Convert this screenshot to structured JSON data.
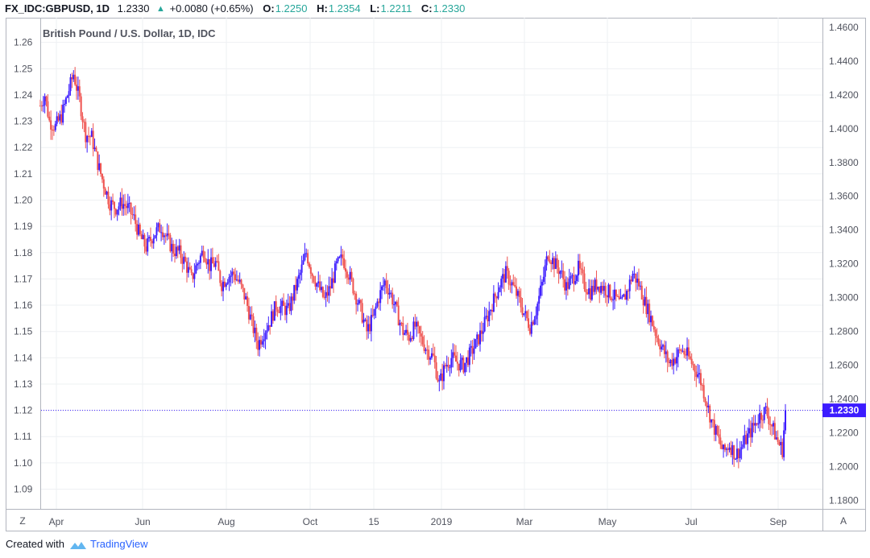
{
  "header": {
    "symbol": "FX_IDC:GBPUSD, 1D",
    "price": "1.2330",
    "change": "+0.0080 (+0.65%)",
    "open_label": "O:",
    "open": "1.2250",
    "high_label": "H:",
    "high": "1.2354",
    "low_label": "L:",
    "low": "1.2211",
    "close_label": "C:",
    "close": "1.2330",
    "up_arrow": "▲"
  },
  "footer": {
    "created_with": "Created with",
    "brand": "TradingView"
  },
  "chart_data": {
    "type": "candlestick",
    "title": "British Pound / U.S. Dollar, 1D, IDC",
    "x_tick_labels": [
      "Apr",
      "Jun",
      "Aug",
      "Oct",
      "15",
      "2019",
      "Mar",
      "May",
      "Jul",
      "Sep"
    ],
    "left_axis": {
      "ticks": [
        "1.26",
        "1.25",
        "1.24",
        "1.23",
        "1.22",
        "1.21",
        "1.20",
        "1.19",
        "1.18",
        "1.17",
        "1.16",
        "1.15",
        "1.14",
        "1.13",
        "1.12",
        "1.11",
        "1.10",
        "1.09"
      ],
      "range": [
        1.0825,
        1.2694
      ]
    },
    "right_axis": {
      "ticks": [
        "1.4600",
        "1.4400",
        "1.4200",
        "1.4000",
        "1.3800",
        "1.3600",
        "1.3400",
        "1.3200",
        "1.3000",
        "1.2800",
        "1.2600",
        "1.2400",
        "1.2200",
        "1.2000",
        "1.1800"
      ],
      "range": [
        1.1749,
        1.4657
      ]
    },
    "last_price_label": "1.2330",
    "last_price_left_scale": 1.12,
    "grid": true,
    "scale_button_left": "Z",
    "scale_button_right": "A",
    "up_color": "#3c1cff",
    "down_color": "#ef5350",
    "path_points": [
      [
        0,
        1.236
      ],
      [
        3,
        1.24
      ],
      [
        6,
        1.23
      ],
      [
        10,
        1.228
      ],
      [
        14,
        1.232
      ],
      [
        18,
        1.24
      ],
      [
        22,
        1.248
      ],
      [
        26,
        1.238
      ],
      [
        30,
        1.225
      ],
      [
        34,
        1.224
      ],
      [
        38,
        1.214
      ],
      [
        42,
        1.206
      ],
      [
        46,
        1.199
      ],
      [
        50,
        1.197
      ],
      [
        54,
        1.199
      ],
      [
        58,
        1.197
      ],
      [
        62,
        1.193
      ],
      [
        66,
        1.186
      ],
      [
        70,
        1.182
      ],
      [
        75,
        1.187
      ],
      [
        80,
        1.19
      ],
      [
        84,
        1.185
      ],
      [
        88,
        1.181
      ],
      [
        92,
        1.18
      ],
      [
        96,
        1.176
      ],
      [
        100,
        1.17
      ],
      [
        104,
        1.176
      ],
      [
        108,
        1.181
      ],
      [
        112,
        1.175
      ],
      [
        116,
        1.176
      ],
      [
        120,
        1.168
      ],
      [
        124,
        1.171
      ],
      [
        128,
        1.172
      ],
      [
        132,
        1.168
      ],
      [
        136,
        1.162
      ],
      [
        140,
        1.153
      ],
      [
        144,
        1.145
      ],
      [
        148,
        1.15
      ],
      [
        152,
        1.154
      ],
      [
        156,
        1.16
      ],
      [
        160,
        1.159
      ],
      [
        164,
        1.158
      ],
      [
        168,
        1.165
      ],
      [
        172,
        1.172
      ],
      [
        176,
        1.18
      ],
      [
        180,
        1.172
      ],
      [
        184,
        1.167
      ],
      [
        188,
        1.162
      ],
      [
        192,
        1.167
      ],
      [
        196,
        1.175
      ],
      [
        200,
        1.178
      ],
      [
        204,
        1.172
      ],
      [
        208,
        1.165
      ],
      [
        212,
        1.158
      ],
      [
        216,
        1.15
      ],
      [
        220,
        1.155
      ],
      [
        224,
        1.163
      ],
      [
        228,
        1.169
      ],
      [
        232,
        1.164
      ],
      [
        236,
        1.157
      ],
      [
        240,
        1.15
      ],
      [
        244,
        1.148
      ],
      [
        248,
        1.152
      ],
      [
        252,
        1.147
      ],
      [
        256,
        1.143
      ],
      [
        260,
        1.14
      ],
      [
        264,
        1.13
      ],
      [
        268,
        1.137
      ],
      [
        272,
        1.14
      ],
      [
        276,
        1.138
      ],
      [
        280,
        1.137
      ],
      [
        284,
        1.141
      ],
      [
        288,
        1.145
      ],
      [
        292,
        1.15
      ],
      [
        296,
        1.156
      ],
      [
        300,
        1.162
      ],
      [
        304,
        1.168
      ],
      [
        308,
        1.172
      ],
      [
        312,
        1.168
      ],
      [
        316,
        1.163
      ],
      [
        320,
        1.157
      ],
      [
        324,
        1.152
      ],
      [
        328,
        1.158
      ],
      [
        332,
        1.168
      ],
      [
        336,
        1.18
      ],
      [
        340,
        1.176
      ],
      [
        344,
        1.173
      ],
      [
        348,
        1.167
      ],
      [
        352,
        1.17
      ],
      [
        356,
        1.174
      ],
      [
        360,
        1.168
      ],
      [
        364,
        1.165
      ],
      [
        368,
        1.168
      ],
      [
        372,
        1.167
      ],
      [
        376,
        1.165
      ],
      [
        380,
        1.163
      ],
      [
        384,
        1.16
      ],
      [
        388,
        1.165
      ],
      [
        392,
        1.172
      ],
      [
        396,
        1.168
      ],
      [
        400,
        1.161
      ],
      [
        404,
        1.155
      ],
      [
        408,
        1.148
      ],
      [
        412,
        1.143
      ],
      [
        416,
        1.138
      ],
      [
        420,
        1.14
      ],
      [
        424,
        1.143
      ],
      [
        428,
        1.141
      ],
      [
        432,
        1.137
      ],
      [
        436,
        1.133
      ],
      [
        440,
        1.125
      ],
      [
        444,
        1.116
      ],
      [
        448,
        1.11
      ],
      [
        452,
        1.104
      ],
      [
        456,
        1.107
      ],
      [
        460,
        1.103
      ],
      [
        464,
        1.106
      ],
      [
        468,
        1.11
      ],
      [
        472,
        1.114
      ],
      [
        476,
        1.118
      ],
      [
        480,
        1.12
      ],
      [
        484,
        1.114
      ],
      [
        488,
        1.108
      ],
      [
        491,
        1.105
      ],
      [
        493,
        1.12
      ]
    ]
  }
}
